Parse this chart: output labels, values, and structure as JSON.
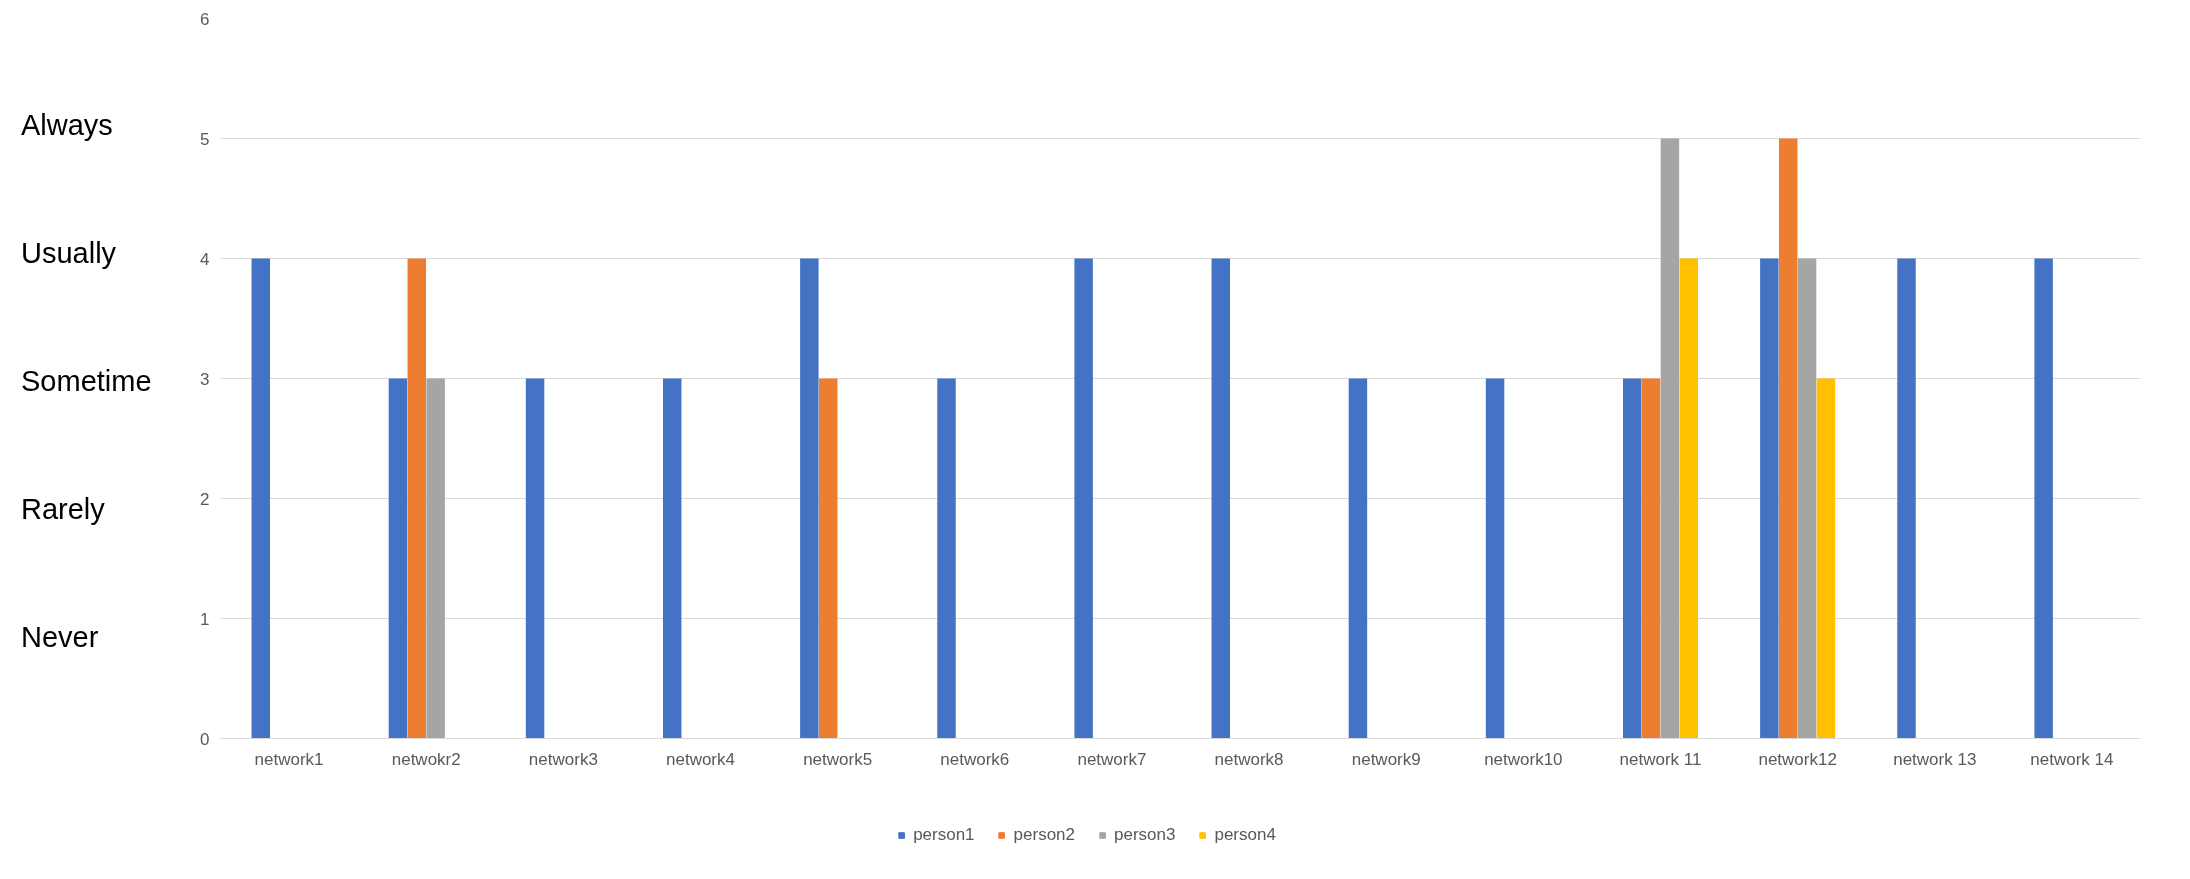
{
  "chart_data": {
    "type": "bar",
    "categories": [
      "network1",
      "netwokr2",
      "network3",
      "network4",
      "network5",
      "network6",
      "network7",
      "network8",
      "network9",
      "network10",
      "network 11",
      "network12",
      "network 13",
      "network 14"
    ],
    "series": [
      {
        "name": "person1",
        "color": "#4472c4",
        "values": [
          4,
          3,
          3,
          3,
          4,
          3,
          4,
          4,
          3,
          3,
          3,
          4,
          4,
          4
        ]
      },
      {
        "name": "person2",
        "color": "#ed7d31",
        "values": [
          null,
          4,
          null,
          null,
          3,
          null,
          null,
          null,
          null,
          null,
          3,
          5,
          null,
          null
        ]
      },
      {
        "name": "person3",
        "color": "#a5a5a5",
        "values": [
          null,
          3,
          null,
          null,
          null,
          null,
          null,
          null,
          null,
          null,
          5,
          4,
          null,
          null
        ]
      },
      {
        "name": "person4",
        "color": "#ffc000",
        "values": [
          null,
          null,
          null,
          null,
          null,
          null,
          null,
          null,
          null,
          null,
          4,
          3,
          null,
          null
        ]
      }
    ],
    "ylim": [
      0,
      6
    ],
    "yticks": [
      0,
      1,
      2,
      3,
      4,
      5,
      6
    ],
    "grid": "y",
    "legend": "bottom",
    "annotations": [
      "Always",
      "Usually",
      "Sometime",
      "Rarely",
      "Never"
    ]
  }
}
